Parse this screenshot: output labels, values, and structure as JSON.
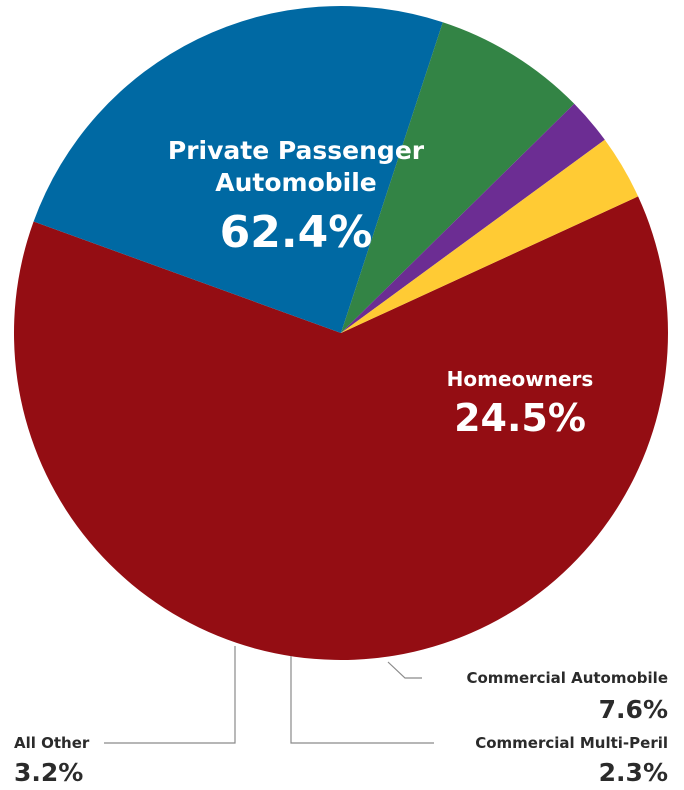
{
  "chart_data": {
    "type": "pie",
    "title": "",
    "slices": [
      {
        "name": "Private Passenger",
        "name_line2": "Automobile",
        "value": 62.4,
        "label": "62.4%",
        "color": "#940d13"
      },
      {
        "name": "Homeowners",
        "value": 24.5,
        "label": "24.5%",
        "color": "#0069a3"
      },
      {
        "name": "Commercial Automobile",
        "value": 7.6,
        "label": "7.6%",
        "color": "#338445"
      },
      {
        "name": "Commercial Multi-Peril",
        "value": 2.3,
        "label": "2.3%",
        "color": "#6c2d93"
      },
      {
        "name": "All Other",
        "value": 3.2,
        "label": "3.2%",
        "color": "#ffcb34"
      }
    ]
  }
}
